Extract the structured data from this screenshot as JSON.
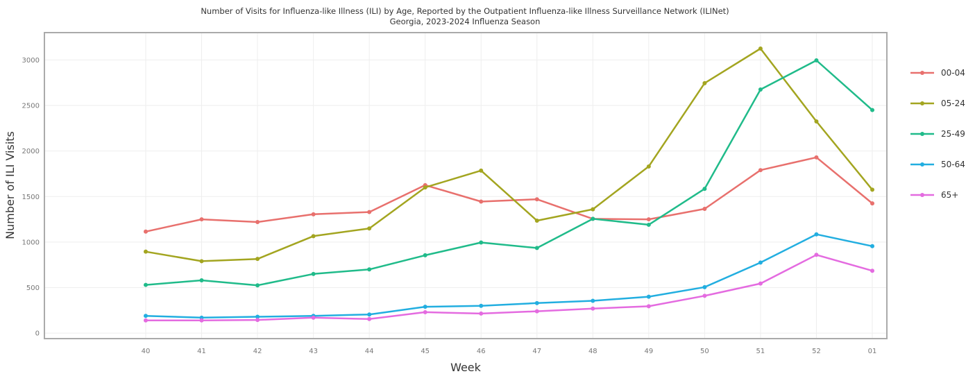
{
  "chart_data": {
    "type": "line",
    "title": "Number of Visits for Influenza-like Illness (ILI) by Age, Reported by the Outpatient Influenza-like Illness Surveillance Network (ILINet)",
    "subtitle": "Georgia, 2023-2024 Influenza Season",
    "xlabel": "Week",
    "ylabel": "Number of ILI Visits",
    "categories": [
      "40",
      "41",
      "42",
      "43",
      "44",
      "45",
      "46",
      "47",
      "48",
      "49",
      "50",
      "51",
      "52",
      "01"
    ],
    "yticks": [
      0,
      500,
      1000,
      1500,
      2000,
      2500,
      3000
    ],
    "ylim": [
      -60,
      3300
    ],
    "grid": true,
    "legend_position": "right",
    "series": [
      {
        "name": "00-04",
        "color": "#E8706D",
        "values": [
          1115,
          1250,
          1220,
          1305,
          1330,
          1625,
          1445,
          1470,
          1255,
          1250,
          1365,
          1790,
          1930,
          1425
        ]
      },
      {
        "name": "05-24",
        "color": "#A3A520",
        "values": [
          895,
          790,
          815,
          1065,
          1150,
          1600,
          1785,
          1235,
          1360,
          1830,
          2745,
          3125,
          2325,
          1575
        ]
      },
      {
        "name": "25-49",
        "color": "#20BB8A",
        "values": [
          530,
          580,
          525,
          650,
          700,
          855,
          995,
          935,
          1255,
          1190,
          1585,
          2675,
          2995,
          2450
        ]
      },
      {
        "name": "50-64",
        "color": "#22AEE0",
        "values": [
          190,
          170,
          180,
          190,
          205,
          290,
          300,
          330,
          355,
          400,
          505,
          775,
          1085,
          955
        ]
      },
      {
        "name": "65+",
        "color": "#E46BE0",
        "values": [
          140,
          140,
          145,
          170,
          155,
          230,
          215,
          240,
          270,
          295,
          410,
          545,
          860,
          685
        ]
      }
    ]
  }
}
